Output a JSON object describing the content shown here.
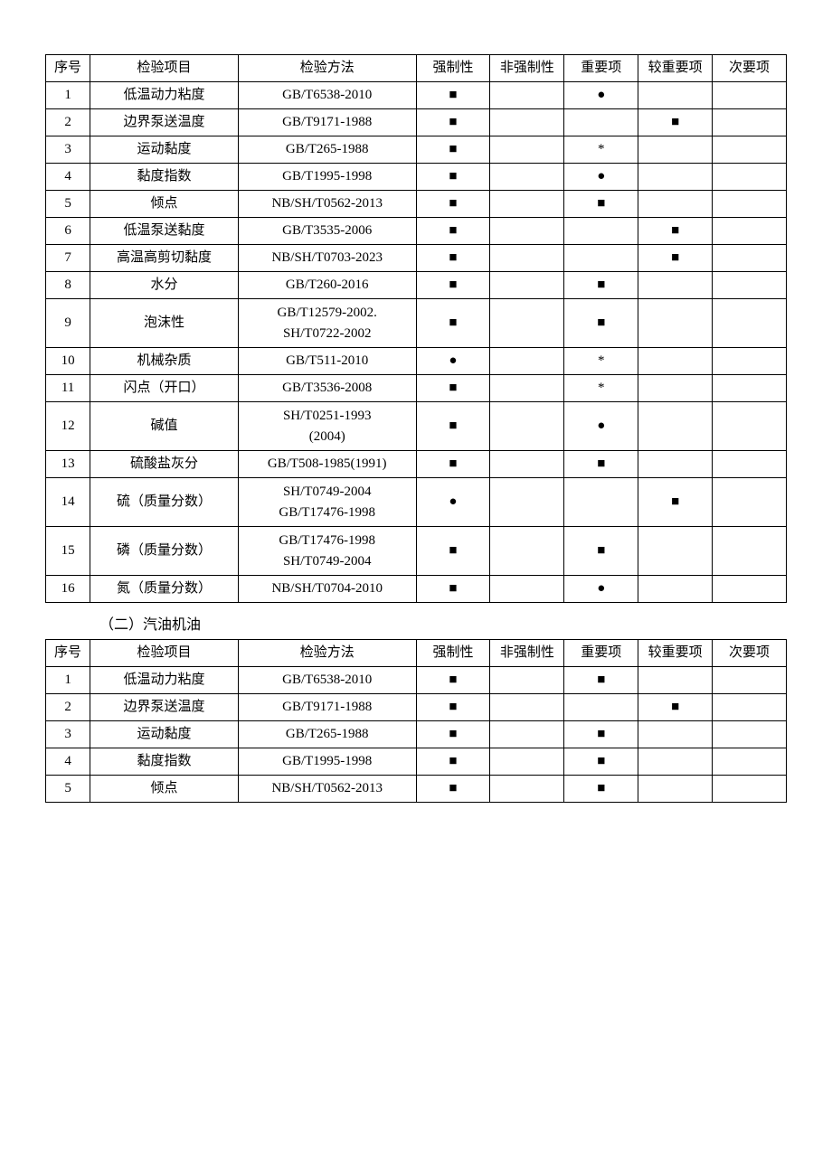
{
  "symbols": {
    "square": "■",
    "dot": "●",
    "star": "*"
  },
  "table1": {
    "headers": [
      "序号",
      "检验项目",
      "检验方法",
      "强制性",
      "非强制性",
      "重要项",
      "较重要项",
      "次要项"
    ],
    "rows": [
      {
        "seq": "1",
        "item": "低温动力粘度",
        "method": "GB/T6538-2010",
        "c1": "■",
        "c2": "",
        "c3": "●",
        "c4": "",
        "c5": ""
      },
      {
        "seq": "2",
        "item": "边界泵送温度",
        "method": "GB/T9171-1988",
        "c1": "■",
        "c2": "",
        "c3": "",
        "c4": "■",
        "c5": ""
      },
      {
        "seq": "3",
        "item": "运动黏度",
        "method": "GB/T265-1988",
        "c1": "■",
        "c2": "",
        "c3": "*",
        "c4": "",
        "c5": ""
      },
      {
        "seq": "4",
        "item": "黏度指数",
        "method": "GB/T1995-1998",
        "c1": "■",
        "c2": "",
        "c3": "●",
        "c4": "",
        "c5": ""
      },
      {
        "seq": "5",
        "item": "倾点",
        "method": "NB/SH/T0562-2013",
        "c1": "■",
        "c2": "",
        "c3": "■",
        "c4": "",
        "c5": ""
      },
      {
        "seq": "6",
        "item": "低温泵送黏度",
        "method": "GB/T3535-2006",
        "c1": "■",
        "c2": "",
        "c3": "",
        "c4": "■",
        "c5": ""
      },
      {
        "seq": "7",
        "item": "高温高剪切黏度",
        "method": "NB/SH/T0703-2023",
        "c1": "■",
        "c2": "",
        "c3": "",
        "c4": "■",
        "c5": ""
      },
      {
        "seq": "8",
        "item": "水分",
        "method": "GB/T260-2016",
        "c1": "■",
        "c2": "",
        "c3": "■",
        "c4": "",
        "c5": ""
      },
      {
        "seq": "9",
        "item": "泡沫性",
        "method": "GB/T12579-2002.\nSH/T0722-2002",
        "c1": "■",
        "c2": "",
        "c3": "■",
        "c4": "",
        "c5": ""
      },
      {
        "seq": "10",
        "item": "机械杂质",
        "method": "GB/T511-2010",
        "c1": "●",
        "c2": "",
        "c3": "*",
        "c4": "",
        "c5": ""
      },
      {
        "seq": "11",
        "item": "闪点（开口）",
        "method": "GB/T3536-2008",
        "c1": "■",
        "c2": "",
        "c3": "*",
        "c4": "",
        "c5": ""
      },
      {
        "seq": "12",
        "item": "碱值",
        "method": "SH/T0251-1993\n(2004)",
        "c1": "■",
        "c2": "",
        "c3": "●",
        "c4": "",
        "c5": ""
      },
      {
        "seq": "13",
        "item": "硫酸盐灰分",
        "method": "GB/T508-1985(1991)",
        "c1": "■",
        "c2": "",
        "c3": "■",
        "c4": "",
        "c5": ""
      },
      {
        "seq": "14",
        "item": "硫（质量分数）",
        "method": "SH/T0749-2004\nGB/T17476-1998",
        "c1": "●",
        "c2": "",
        "c3": "",
        "c4": "■",
        "c5": ""
      },
      {
        "seq": "15",
        "item": "磷（质量分数）",
        "method": "GB/T17476-1998\nSH/T0749-2004",
        "c1": "■",
        "c2": "",
        "c3": "■",
        "c4": "",
        "c5": ""
      },
      {
        "seq": "16",
        "item": "氮（质量分数）",
        "method": "NB/SH/T0704-2010",
        "c1": "■",
        "c2": "",
        "c3": "●",
        "c4": "",
        "c5": ""
      }
    ]
  },
  "section2_title": "（二）汽油机油",
  "table2": {
    "headers": [
      "序号",
      "检验项目",
      "检验方法",
      "强制性",
      "非强制性",
      "重要项",
      "较重要项",
      "次要项"
    ],
    "rows": [
      {
        "seq": "1",
        "item": "低温动力粘度",
        "method": "GB/T6538-2010",
        "c1": "■",
        "c2": "",
        "c3": "■",
        "c4": "",
        "c5": ""
      },
      {
        "seq": "2",
        "item": "边界泵送温度",
        "method": "GB/T9171-1988",
        "c1": "■",
        "c2": "",
        "c3": "",
        "c4": "■",
        "c5": ""
      },
      {
        "seq": "3",
        "item": "运动黏度",
        "method": "GB/T265-1988",
        "c1": "■",
        "c2": "",
        "c3": "■",
        "c4": "",
        "c5": ""
      },
      {
        "seq": "4",
        "item": "黏度指数",
        "method": "GB/T1995-1998",
        "c1": "■",
        "c2": "",
        "c3": "■",
        "c4": "",
        "c5": ""
      },
      {
        "seq": "5",
        "item": "倾点",
        "method": "NB/SH/T0562-2013",
        "c1": "■",
        "c2": "",
        "c3": "■",
        "c4": "",
        "c5": ""
      }
    ]
  }
}
